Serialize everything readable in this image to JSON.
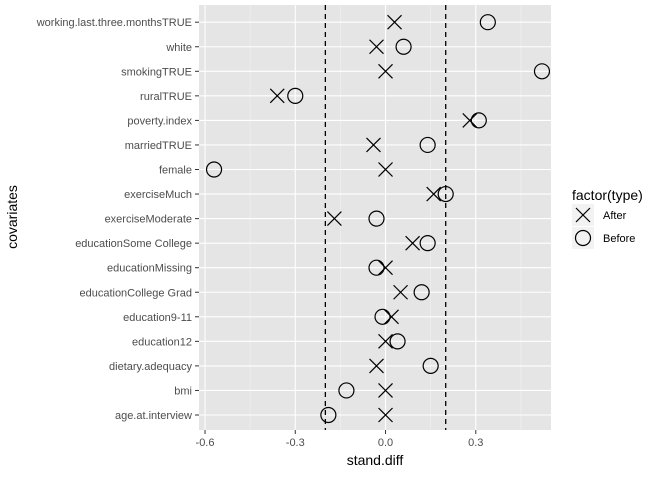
{
  "chart_data": {
    "type": "scatter",
    "title": "",
    "xlabel": "stand.diff",
    "ylabel": "covariates",
    "xlim": [
      -0.62,
      0.55
    ],
    "x_ticks": [
      -0.6,
      -0.3,
      0.0,
      0.3
    ],
    "x_tick_labels": [
      "-0.6",
      "-0.3",
      "0.0",
      "0.3"
    ],
    "reference_lines": [
      -0.2,
      0.2
    ],
    "grid": true,
    "legend_position": "right",
    "legend_title": "factor(type)",
    "categories": [
      "age.at.interview",
      "bmi",
      "dietary.adequacy",
      "education12",
      "education9-11",
      "educationCollege Grad",
      "educationMissing",
      "educationSome College",
      "exerciseModerate",
      "exerciseMuch",
      "female",
      "marriedTRUE",
      "poverty.index",
      "ruralTRUE",
      "smokingTRUE",
      "white",
      "working.last.three.monthsTRUE"
    ],
    "series": [
      {
        "name": "After",
        "shape": "cross",
        "values": [
          0.0,
          0.0,
          -0.03,
          0.0,
          0.02,
          0.05,
          0.0,
          0.09,
          -0.17,
          0.16,
          0.0,
          -0.04,
          0.28,
          -0.36,
          0.0,
          -0.03,
          0.03
        ]
      },
      {
        "name": "Before",
        "shape": "circle",
        "values": [
          -0.19,
          -0.13,
          0.15,
          0.04,
          -0.01,
          0.12,
          -0.03,
          0.14,
          -0.03,
          0.2,
          -0.57,
          0.14,
          0.31,
          -0.3,
          0.52,
          0.06,
          0.34
        ]
      }
    ]
  },
  "colors": {
    "panel_background": "#e5e5e5",
    "grid_major": "#ffffff",
    "grid_minor": "#f2f2f2",
    "tick_text": "#4d4d4d",
    "marker": "#000000",
    "legend_key_background": "#f2f2f2"
  }
}
